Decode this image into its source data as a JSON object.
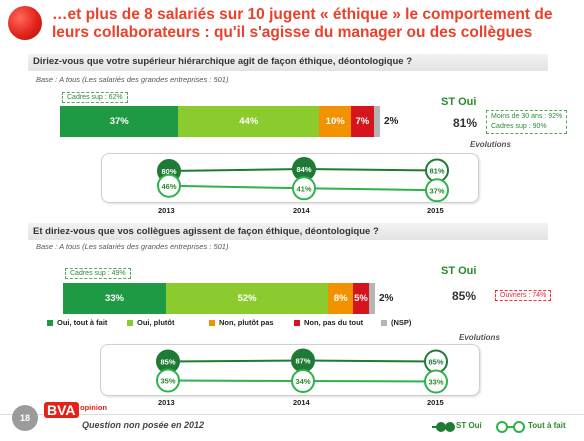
{
  "title": "…et plus de 8 salariés sur 10 jugent « éthique » le comportement de leurs collaborateurs : qu'il s'agisse du manager ou des collègues",
  "colors": {
    "oui_tout_a_fait": "#1e9a45",
    "oui_plutot": "#8ccb2d",
    "non_plutot_pas": "#f39200",
    "non_pas_du_tout": "#d6141e",
    "nsp": "#b5b5b5",
    "title": "#e8412c"
  },
  "legend": {
    "oui_tout_a_fait": "Oui, tout à fait",
    "oui_plutot": "Oui, plutôt",
    "non_plutot_pas": "Non, plutôt pas",
    "non_pas_du_tout": "Non, pas du tout",
    "nsp": "(NSP)"
  },
  "footer": {
    "page_number": "18",
    "brand": "BVA",
    "brand_sub": "opinion",
    "note": "Question non posée en 2012",
    "legend_st_oui": "ST Oui",
    "legend_tout_a_fait": "Tout à fait"
  },
  "evol_title": "Evolutions",
  "chart_data": [
    {
      "type": "bar",
      "question": "Diriez-vous que votre supérieur hiérarchique agit de façon éthique, déontologique ?",
      "base": "Base : A tous (Les salariés des grandes entreprises : 501)",
      "callout": "Cadres sup : 62%",
      "segments": [
        {
          "name": "Oui, tout à fait",
          "value": 37,
          "label": "37%"
        },
        {
          "name": "Oui, plutôt",
          "value": 44,
          "label": "44%"
        },
        {
          "name": "Non, plutôt pas",
          "value": 10,
          "label": "10%"
        },
        {
          "name": "Non, pas du tout",
          "value": 7,
          "label": "7%"
        },
        {
          "name": "(NSP)",
          "value": 2,
          "label": "2%"
        }
      ],
      "st_label": "ST Oui",
      "st_value": "81%",
      "side_note": [
        "Moins de 30 ans : 92%",
        "Cadres sup : 90%"
      ]
    },
    {
      "type": "line",
      "years": [
        "2013",
        "2014",
        "2015"
      ],
      "series": [
        {
          "name": "ST Oui",
          "values": [
            80,
            84,
            81
          ],
          "labels": [
            "80%",
            "84%",
            "81%"
          ]
        },
        {
          "name": "Tout à fait",
          "values": [
            46,
            41,
            37
          ],
          "labels": [
            "46%",
            "41%",
            "37%"
          ]
        }
      ]
    },
    {
      "type": "bar",
      "question": "Et diriez-vous que vos collègues agissent de façon éthique, déontologique ?",
      "base": "Base : A tous (Les salariés des grandes entreprises : 501)",
      "callout": "Cadres sup : 49%",
      "segments": [
        {
          "name": "Oui, tout à fait",
          "value": 33,
          "label": "33%"
        },
        {
          "name": "Oui, plutôt",
          "value": 52,
          "label": "52%"
        },
        {
          "name": "Non, plutôt pas",
          "value": 8,
          "label": "8%"
        },
        {
          "name": "Non, pas du tout",
          "value": 5,
          "label": "5%"
        },
        {
          "name": "(NSP)",
          "value": 2,
          "label": "2%"
        }
      ],
      "st_label": "ST Oui",
      "st_value": "85%",
      "side_note": [
        "Ouvriers : 74%"
      ]
    },
    {
      "type": "line",
      "years": [
        "2013",
        "2014",
        "2015"
      ],
      "series": [
        {
          "name": "ST Oui",
          "values": [
            85,
            87,
            85
          ],
          "labels": [
            "85%",
            "87%",
            "85%"
          ]
        },
        {
          "name": "Tout à fait",
          "values": [
            35,
            34,
            33
          ],
          "labels": [
            "35%",
            "34%",
            "33%"
          ]
        }
      ]
    }
  ]
}
